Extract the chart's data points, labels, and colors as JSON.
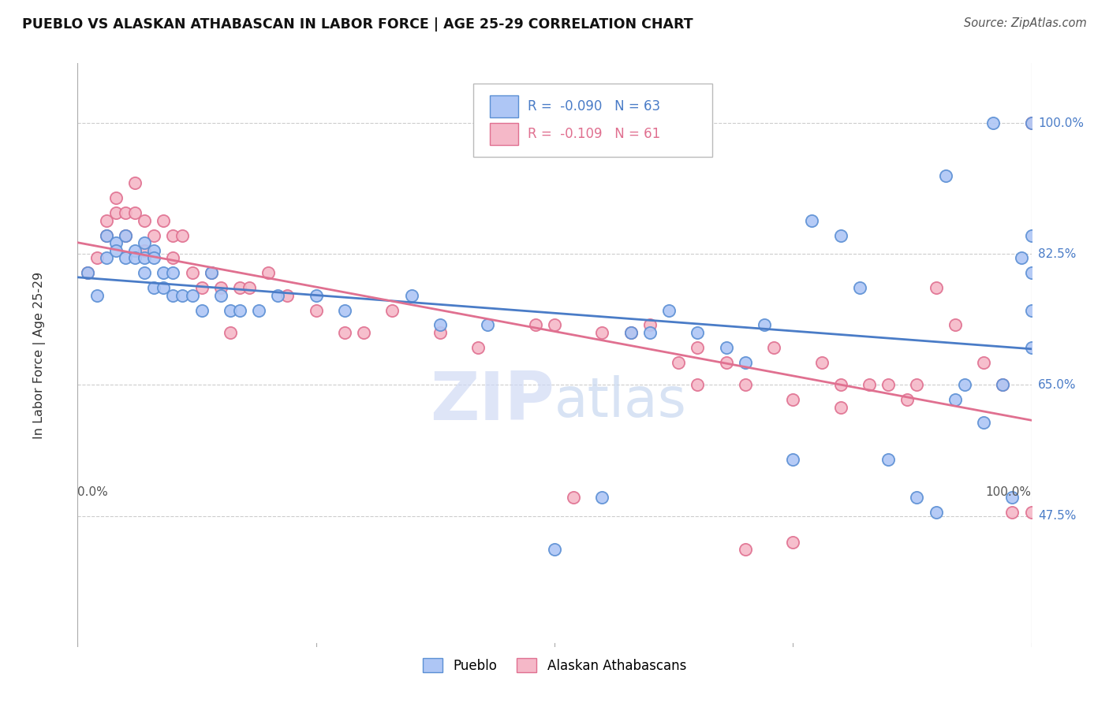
{
  "title": "PUEBLO VS ALASKAN ATHABASCAN IN LABOR FORCE | AGE 25-29 CORRELATION CHART",
  "source_text": "Source: ZipAtlas.com",
  "ylabel": "In Labor Force | Age 25-29",
  "xlim": [
    0.0,
    1.0
  ],
  "ylim": [
    0.3,
    1.08
  ],
  "yticks": [
    0.475,
    0.65,
    0.825,
    1.0
  ],
  "ytick_labels": [
    "47.5%",
    "65.0%",
    "82.5%",
    "100.0%"
  ],
  "xtick_labels": [
    "0.0%",
    "100.0%"
  ],
  "pueblo_color": "#aec6f5",
  "pueblo_edge": "#5b8fd4",
  "athabascan_color": "#f5b8c8",
  "athabascan_edge": "#e07090",
  "pueblo_line_color": "#4a7cc7",
  "athabascan_line_color": "#e07090",
  "pueblo_R": -0.09,
  "pueblo_N": 63,
  "athabascan_R": -0.109,
  "athabascan_N": 61,
  "watermark_zip": "ZIP",
  "watermark_atlas": "atlas",
  "bg_color": "#ffffff",
  "grid_color": "#cccccc",
  "pueblo_x": [
    0.01,
    0.02,
    0.03,
    0.03,
    0.04,
    0.04,
    0.05,
    0.05,
    0.06,
    0.06,
    0.07,
    0.07,
    0.07,
    0.08,
    0.08,
    0.08,
    0.09,
    0.09,
    0.1,
    0.1,
    0.11,
    0.12,
    0.13,
    0.14,
    0.15,
    0.16,
    0.17,
    0.19,
    0.21,
    0.25,
    0.28,
    0.35,
    0.38,
    0.43,
    0.5,
    0.55,
    0.58,
    0.6,
    0.62,
    0.65,
    0.68,
    0.7,
    0.72,
    0.75,
    0.77,
    0.8,
    0.82,
    0.85,
    0.88,
    0.9,
    0.91,
    0.92,
    0.93,
    0.95,
    0.96,
    0.97,
    0.98,
    0.99,
    1.0,
    1.0,
    1.0,
    1.0,
    1.0
  ],
  "pueblo_y": [
    0.8,
    0.77,
    0.82,
    0.85,
    0.84,
    0.83,
    0.85,
    0.82,
    0.83,
    0.82,
    0.84,
    0.82,
    0.8,
    0.83,
    0.82,
    0.78,
    0.8,
    0.78,
    0.8,
    0.77,
    0.77,
    0.77,
    0.75,
    0.8,
    0.77,
    0.75,
    0.75,
    0.75,
    0.77,
    0.77,
    0.75,
    0.77,
    0.73,
    0.73,
    0.43,
    0.5,
    0.72,
    0.72,
    0.75,
    0.72,
    0.7,
    0.68,
    0.73,
    0.55,
    0.87,
    0.85,
    0.78,
    0.55,
    0.5,
    0.48,
    0.93,
    0.63,
    0.65,
    0.6,
    1.0,
    0.65,
    0.5,
    0.82,
    0.7,
    0.75,
    0.8,
    0.85,
    1.0
  ],
  "athabascan_x": [
    0.01,
    0.02,
    0.03,
    0.03,
    0.04,
    0.04,
    0.05,
    0.05,
    0.06,
    0.06,
    0.07,
    0.07,
    0.08,
    0.09,
    0.1,
    0.1,
    0.11,
    0.12,
    0.13,
    0.14,
    0.15,
    0.16,
    0.17,
    0.18,
    0.2,
    0.22,
    0.25,
    0.28,
    0.3,
    0.33,
    0.38,
    0.42,
    0.48,
    0.5,
    0.55,
    0.58,
    0.6,
    0.63,
    0.65,
    0.68,
    0.7,
    0.73,
    0.75,
    0.78,
    0.8,
    0.83,
    0.85,
    0.87,
    0.88,
    0.9,
    0.92,
    0.95,
    0.97,
    0.98,
    1.0,
    1.0,
    0.52,
    0.65,
    0.7,
    0.75,
    0.8
  ],
  "athabascan_y": [
    0.8,
    0.82,
    0.85,
    0.87,
    0.88,
    0.9,
    0.88,
    0.85,
    0.88,
    0.92,
    0.87,
    0.83,
    0.85,
    0.87,
    0.85,
    0.82,
    0.85,
    0.8,
    0.78,
    0.8,
    0.78,
    0.72,
    0.78,
    0.78,
    0.8,
    0.77,
    0.75,
    0.72,
    0.72,
    0.75,
    0.72,
    0.7,
    0.73,
    0.73,
    0.72,
    0.72,
    0.73,
    0.68,
    0.7,
    0.68,
    0.65,
    0.7,
    0.63,
    0.68,
    0.65,
    0.65,
    0.65,
    0.63,
    0.65,
    0.78,
    0.73,
    0.68,
    0.65,
    0.48,
    0.48,
    1.0,
    0.5,
    0.65,
    0.43,
    0.44,
    0.62
  ]
}
